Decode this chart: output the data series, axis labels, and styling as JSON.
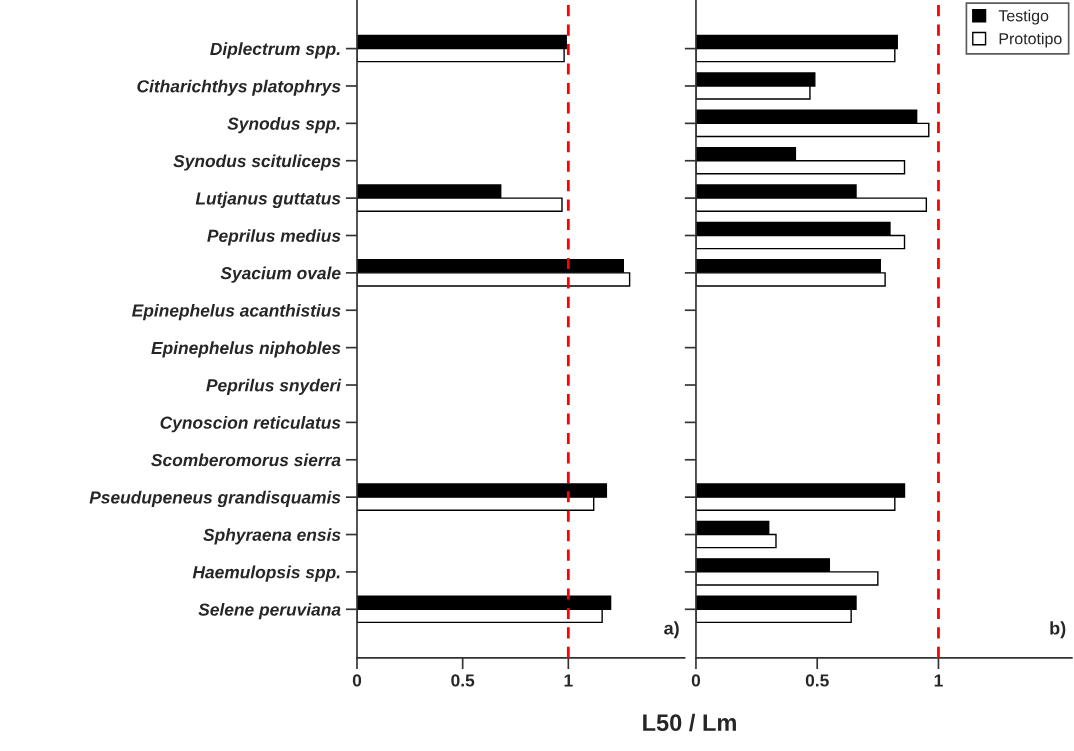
{
  "chart_data": [
    {
      "type": "bar",
      "orientation": "horizontal",
      "xlabel": "L50 / Lm",
      "categories": [
        "Diplectrum spp.",
        "Citharichthys platophrys",
        "Synodus spp.",
        "Synodus scituliceps",
        "Lutjanus guttatus",
        "Peprilus medius",
        "Syacium ovale",
        "Epinephelus acanthistius",
        "Epinephelus niphobles",
        "Peprilus snyderi",
        "Cynoscion reticulatus",
        "Scomberomorus sierra",
        "Pseudupeneus grandisquamis",
        "Sphyraena ensis",
        "Haemulopsis spp.",
        "Selene peruviana"
      ],
      "series": [
        {
          "color": "#000000",
          "values": [
            0.99,
            null,
            null,
            null,
            0.68,
            null,
            1.26,
            null,
            null,
            null,
            null,
            null,
            1.18,
            null,
            null,
            1.2
          ]
        },
        {
          "color": "#ffffff",
          "values": [
            0.98,
            null,
            null,
            null,
            0.97,
            null,
            1.29,
            null,
            null,
            null,
            null,
            null,
            1.12,
            null,
            null,
            1.16
          ]
        }
      ],
      "xlim": [
        0,
        1.55
      ],
      "xticks": [
        0,
        0.5,
        1
      ],
      "ref_lines": [
        {
          "axis": "x",
          "value": 1,
          "color": "#ff0000",
          "line_style": "dashed"
        }
      ],
      "annotations": [
        "a)"
      ],
      "grid": false
    },
    {
      "type": "bar",
      "orientation": "horizontal",
      "categories": [
        null,
        null,
        null,
        null,
        null,
        null,
        null,
        null,
        null,
        null,
        null,
        null,
        null,
        null,
        null,
        null
      ],
      "series": [
        {
          "name": "Testigo",
          "color": "#000000",
          "values": [
            0.83,
            0.49,
            0.91,
            0.41,
            0.66,
            0.8,
            0.76,
            null,
            null,
            null,
            null,
            null,
            0.86,
            0.3,
            0.55,
            0.66
          ]
        },
        {
          "name": "Prototipo",
          "color": "#ffffff",
          "values": [
            0.82,
            0.47,
            0.96,
            0.86,
            0.95,
            0.86,
            0.78,
            null,
            null,
            null,
            null,
            null,
            0.82,
            0.33,
            0.75,
            0.64
          ]
        }
      ],
      "xlim": [
        0,
        1.55
      ],
      "xticks": [
        0,
        0.5,
        1
      ],
      "ref_lines": [
        {
          "axis": "x",
          "value": 1,
          "color": "#ff0000",
          "line_style": "dashed"
        }
      ],
      "annotations": [
        "b)"
      ],
      "legend": "top right",
      "tick_labels": "x",
      "grid": false
    }
  ]
}
